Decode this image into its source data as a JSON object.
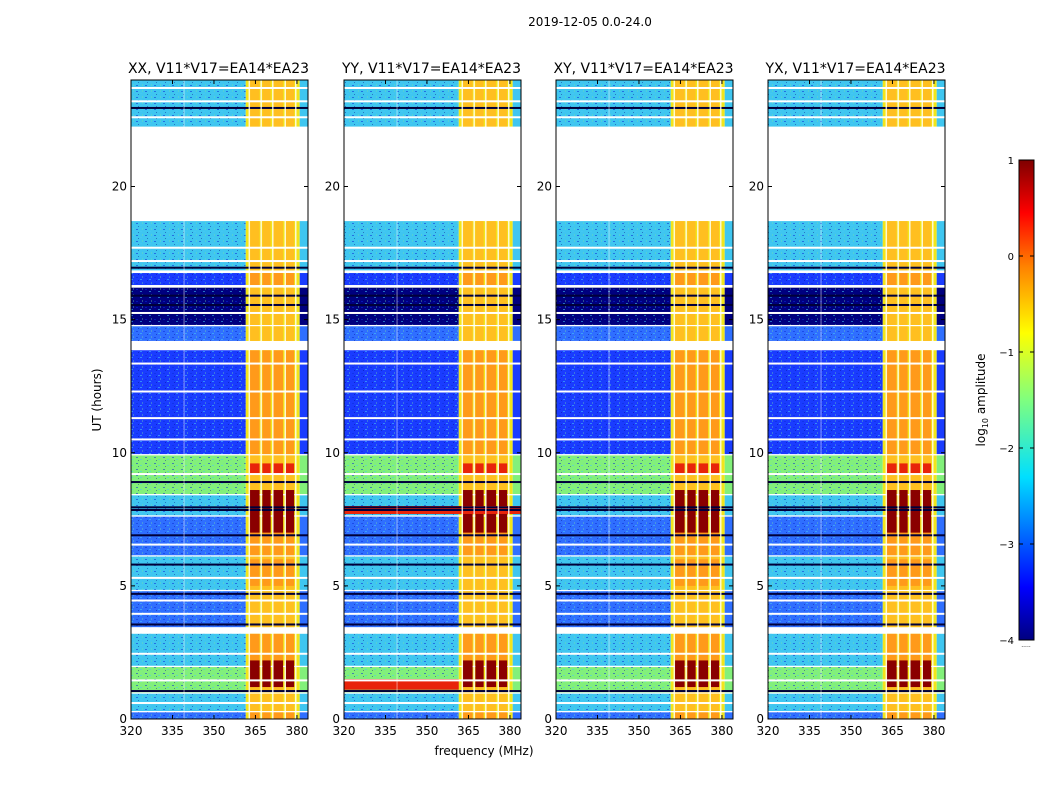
{
  "suptitle": "2019-12-05 0.0-24.0",
  "colorbar": {
    "label_prefix": "log",
    "label_sub": "10",
    "label_suffix": " amplitude",
    "ticks": [
      "1",
      "0",
      "−1",
      "−2",
      "−3",
      "−4"
    ],
    "range": [
      -4,
      1
    ],
    "colormap": "jet",
    "extra_label": "....."
  },
  "chart_data": {
    "type": "heatmap",
    "xlabel": "frequency (MHz)",
    "ylabel": "UT (hours)",
    "xlim": [
      320,
      384
    ],
    "ylim": [
      0,
      24
    ],
    "x_ticks": [
      "320",
      "335",
      "350",
      "365",
      "380"
    ],
    "y_ticks": [
      "0",
      "5",
      "10",
      "15",
      "20"
    ],
    "panels": [
      {
        "title": "XX, V11*V17=EA14*EA23"
      },
      {
        "title": "YY, V11*V17=EA14*EA23"
      },
      {
        "title": "XY, V11*V17=EA14*EA23"
      },
      {
        "title": "YX, V11*V17=EA14*EA23"
      }
    ],
    "colors": {
      "deep_blue": "#00007f",
      "blue": "#1a3cff",
      "mid_blue": "#2f6fff",
      "cyan": "#3fc6f0",
      "green": "#82f07a",
      "yellow": "#f2e51a",
      "orange": "#ff9a1a",
      "red": "#e8240a",
      "dark_red": "#8a0000"
    }
  }
}
